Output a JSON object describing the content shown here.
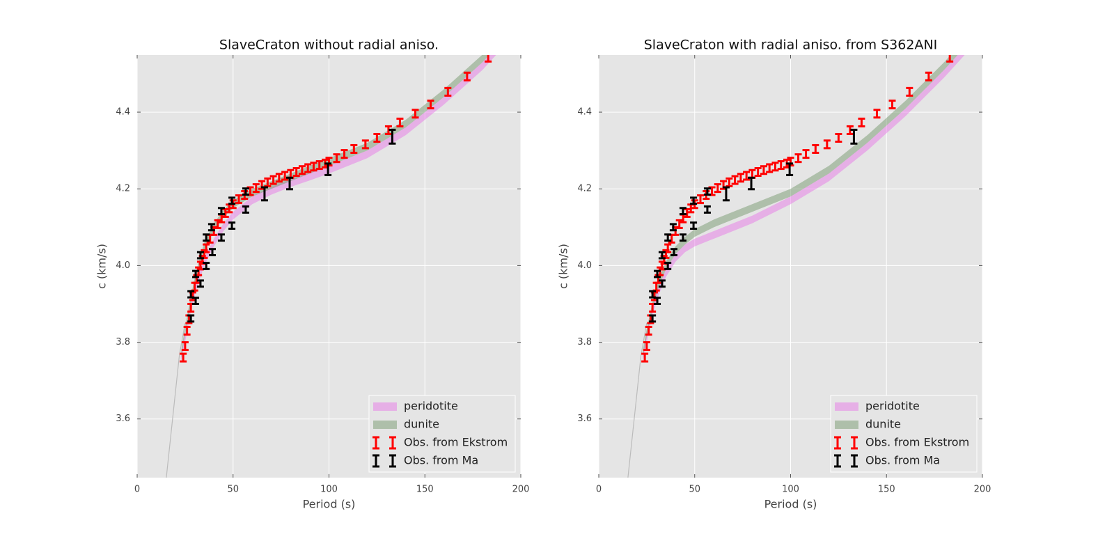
{
  "chart_data": [
    {
      "type": "combo",
      "title": "SlaveCraton without radial aniso.",
      "xlabel": "Period (s)",
      "ylabel": "c (km/s)",
      "xlim": [
        0,
        200
      ],
      "ylim": [
        3.447,
        4.549
      ],
      "xticks": [
        0,
        50,
        100,
        150,
        200
      ],
      "yticks": [
        3.6,
        3.8,
        {
          "value": 4,
          "label": "4.0"
        },
        4.2,
        4.4
      ],
      "grid": true,
      "legend": "lower right",
      "series": [
        {
          "name": "peridotite",
          "type": "band",
          "color": "#e879e8",
          "x": [
            23,
            25,
            28,
            31,
            35,
            40,
            45,
            50,
            60,
            70,
            80,
            90,
            100,
            120,
            140,
            160,
            180,
            200
          ],
          "lower": [
            3.75,
            3.8,
            3.88,
            3.94,
            4.0,
            4.05,
            4.09,
            4.12,
            4.16,
            4.185,
            4.205,
            4.222,
            4.24,
            4.28,
            4.34,
            4.42,
            4.51,
            4.62
          ],
          "upper": [
            3.77,
            3.82,
            3.9,
            3.96,
            4.02,
            4.07,
            4.11,
            4.14,
            4.18,
            4.205,
            4.225,
            4.242,
            4.26,
            4.3,
            4.36,
            4.44,
            4.53,
            4.64
          ]
        },
        {
          "name": "dunite",
          "type": "band",
          "color": "#77996f",
          "x": [
            23,
            25,
            28,
            31,
            35,
            40,
            45,
            50,
            60,
            70,
            80,
            90,
            100,
            120,
            140,
            160,
            180,
            200
          ],
          "lower": [
            3.76,
            3.82,
            3.9,
            3.97,
            4.04,
            4.09,
            4.125,
            4.15,
            4.18,
            4.2,
            4.22,
            4.24,
            4.26,
            4.3,
            4.36,
            4.44,
            4.53,
            4.64
          ],
          "upper": [
            3.78,
            3.84,
            3.92,
            3.99,
            4.06,
            4.11,
            4.145,
            4.17,
            4.2,
            4.22,
            4.24,
            4.26,
            4.28,
            4.32,
            4.38,
            4.46,
            4.55,
            4.66
          ]
        },
        {
          "type": "line",
          "color": "#bbbbbb",
          "x": [
            15.2,
            22,
            25
          ],
          "values": [
            3.447,
            3.766,
            3.85
          ]
        },
        {
          "name": "Obs. from Ekstrom",
          "type": "errorbar",
          "color": "#ff0000",
          "x": [
            24,
            25,
            26,
            27,
            28,
            29,
            30,
            31,
            32,
            33,
            34,
            35,
            36,
            38,
            40,
            42,
            44,
            46,
            48,
            50,
            53,
            56,
            59,
            62,
            65,
            68,
            71,
            74,
            77,
            80,
            83,
            86,
            89,
            92,
            95,
            98,
            100,
            104,
            108,
            113,
            119,
            125,
            131,
            137,
            145,
            153,
            162,
            172,
            183
          ],
          "values": [
            3.76,
            3.79,
            3.83,
            3.86,
            3.89,
            3.92,
            3.945,
            3.965,
            3.985,
            4.0,
            4.015,
            4.03,
            4.045,
            4.07,
            4.09,
            4.108,
            4.123,
            4.137,
            4.149,
            4.16,
            4.173,
            4.184,
            4.194,
            4.202,
            4.21,
            4.217,
            4.223,
            4.229,
            4.234,
            4.239,
            4.244,
            4.249,
            4.254,
            4.258,
            4.262,
            4.266,
            4.271,
            4.28,
            4.291,
            4.304,
            4.316,
            4.333,
            4.353,
            4.373,
            4.396,
            4.42,
            4.453,
            4.493,
            4.542
          ],
          "errors": [
            0.01,
            0.01,
            0.01,
            0.01,
            0.01,
            0.01,
            0.01,
            0.01,
            0.01,
            0.01,
            0.01,
            0.01,
            0.01,
            0.01,
            0.01,
            0.01,
            0.01,
            0.01,
            0.01,
            0.01,
            0.01,
            0.01,
            0.01,
            0.01,
            0.01,
            0.01,
            0.01,
            0.01,
            0.01,
            0.01,
            0.01,
            0.01,
            0.01,
            0.01,
            0.01,
            0.01,
            0.01,
            0.01,
            0.01,
            0.01,
            0.01,
            0.01,
            0.01,
            0.01,
            0.01,
            0.01,
            0.01,
            0.01,
            0.01
          ]
        },
        {
          "name": "Obs. from Ma",
          "type": "errorbar",
          "color": "#000000",
          "x": [
            28,
            28,
            30.5,
            30.5,
            33,
            33,
            36,
            36,
            38.8,
            39.2,
            43.9,
            43.9,
            49.4,
            49.4,
            56.6,
            56.6,
            66.4,
            79.5,
            99.5,
            133
          ],
          "values": [
            3.862,
            3.925,
            3.908,
            3.978,
            3.953,
            4.027,
            3.999,
            4.073,
            4.1,
            4.035,
            4.073,
            4.142,
            4.104,
            4.169,
            4.146,
            4.193,
            4.187,
            4.214,
            4.251,
            4.336
          ],
          "errors": [
            0.008,
            0.008,
            0.008,
            0.008,
            0.008,
            0.008,
            0.008,
            0.008,
            0.008,
            0.008,
            0.008,
            0.008,
            0.008,
            0.008,
            0.008,
            0.008,
            0.017,
            0.015,
            0.015,
            0.018
          ]
        }
      ]
    },
    {
      "type": "combo",
      "title": "SlaveCraton with radial aniso. from S362ANI",
      "xlabel": "Period (s)",
      "ylabel": "c (km/s)",
      "xlim": [
        0,
        200
      ],
      "ylim": [
        3.447,
        4.549
      ],
      "xticks": [
        0,
        50,
        100,
        150,
        200
      ],
      "yticks": [
        3.6,
        3.8,
        {
          "value": 4,
          "label": "4.0"
        },
        4.2,
        4.4
      ],
      "grid": true,
      "legend": "lower right",
      "series": [
        {
          "name": "peridotite",
          "type": "band",
          "color": "#e879e8",
          "x": [
            23,
            25,
            28,
            31,
            35,
            40,
            45,
            50,
            60,
            70,
            80,
            90,
            100,
            120,
            140,
            160,
            180,
            200
          ],
          "lower": [
            3.75,
            3.8,
            3.87,
            3.92,
            3.97,
            4.01,
            4.035,
            4.05,
            4.07,
            4.09,
            4.11,
            4.135,
            4.16,
            4.22,
            4.3,
            4.39,
            4.49,
            4.6
          ],
          "upper": [
            3.77,
            3.82,
            3.89,
            3.94,
            3.99,
            4.03,
            4.055,
            4.07,
            4.09,
            4.11,
            4.13,
            4.155,
            4.18,
            4.24,
            4.32,
            4.41,
            4.51,
            4.62
          ]
        },
        {
          "name": "dunite",
          "type": "band",
          "color": "#77996f",
          "x": [
            23,
            25,
            28,
            31,
            35,
            40,
            45,
            50,
            60,
            70,
            80,
            90,
            100,
            120,
            140,
            160,
            180,
            200
          ],
          "lower": [
            3.76,
            3.815,
            3.885,
            3.94,
            3.99,
            4.03,
            4.055,
            4.075,
            4.1,
            4.12,
            4.14,
            4.16,
            4.18,
            4.24,
            4.32,
            4.41,
            4.51,
            4.62
          ],
          "upper": [
            3.78,
            3.835,
            3.905,
            3.96,
            4.01,
            4.05,
            4.075,
            4.095,
            4.12,
            4.14,
            4.16,
            4.18,
            4.2,
            4.26,
            4.34,
            4.43,
            4.53,
            4.64
          ]
        },
        {
          "type": "line",
          "color": "#bbbbbb",
          "x": [
            15.2,
            22,
            25
          ],
          "values": [
            3.447,
            3.766,
            3.85
          ]
        },
        {
          "name": "Obs. from Ekstrom",
          "type": "errorbar",
          "color": "#ff0000",
          "x": [
            24,
            25,
            26,
            27,
            28,
            29,
            30,
            31,
            32,
            33,
            34,
            35,
            36,
            38,
            40,
            42,
            44,
            46,
            48,
            50,
            53,
            56,
            59,
            62,
            65,
            68,
            71,
            74,
            77,
            80,
            83,
            86,
            89,
            92,
            95,
            98,
            100,
            104,
            108,
            113,
            119,
            125,
            131,
            137,
            145,
            153,
            162,
            172,
            183
          ],
          "values": [
            3.76,
            3.79,
            3.83,
            3.86,
            3.89,
            3.92,
            3.945,
            3.965,
            3.985,
            4.0,
            4.015,
            4.03,
            4.045,
            4.07,
            4.09,
            4.108,
            4.123,
            4.137,
            4.149,
            4.16,
            4.173,
            4.184,
            4.194,
            4.202,
            4.21,
            4.217,
            4.223,
            4.229,
            4.234,
            4.239,
            4.244,
            4.249,
            4.254,
            4.258,
            4.262,
            4.266,
            4.271,
            4.28,
            4.291,
            4.304,
            4.316,
            4.333,
            4.353,
            4.373,
            4.396,
            4.42,
            4.453,
            4.493,
            4.542
          ],
          "errors": [
            0.01,
            0.01,
            0.01,
            0.01,
            0.01,
            0.01,
            0.01,
            0.01,
            0.01,
            0.01,
            0.01,
            0.01,
            0.01,
            0.01,
            0.01,
            0.01,
            0.01,
            0.01,
            0.01,
            0.01,
            0.01,
            0.01,
            0.01,
            0.01,
            0.01,
            0.01,
            0.01,
            0.01,
            0.01,
            0.01,
            0.01,
            0.01,
            0.01,
            0.01,
            0.01,
            0.01,
            0.01,
            0.01,
            0.01,
            0.01,
            0.01,
            0.01,
            0.01,
            0.01,
            0.01,
            0.01,
            0.01,
            0.01,
            0.01
          ]
        },
        {
          "name": "Obs. from Ma",
          "type": "errorbar",
          "color": "#000000",
          "x": [
            28,
            28,
            30.5,
            30.5,
            33,
            33,
            36,
            36,
            38.8,
            39.2,
            43.9,
            43.9,
            49.4,
            49.4,
            56.6,
            56.6,
            66.4,
            79.5,
            99.5,
            133
          ],
          "values": [
            3.862,
            3.925,
            3.908,
            3.978,
            3.953,
            4.027,
            3.999,
            4.073,
            4.1,
            4.035,
            4.073,
            4.142,
            4.104,
            4.169,
            4.146,
            4.193,
            4.187,
            4.214,
            4.251,
            4.336
          ],
          "errors": [
            0.008,
            0.008,
            0.008,
            0.008,
            0.008,
            0.008,
            0.008,
            0.008,
            0.008,
            0.008,
            0.008,
            0.008,
            0.008,
            0.008,
            0.008,
            0.008,
            0.017,
            0.015,
            0.015,
            0.018
          ]
        }
      ]
    }
  ]
}
